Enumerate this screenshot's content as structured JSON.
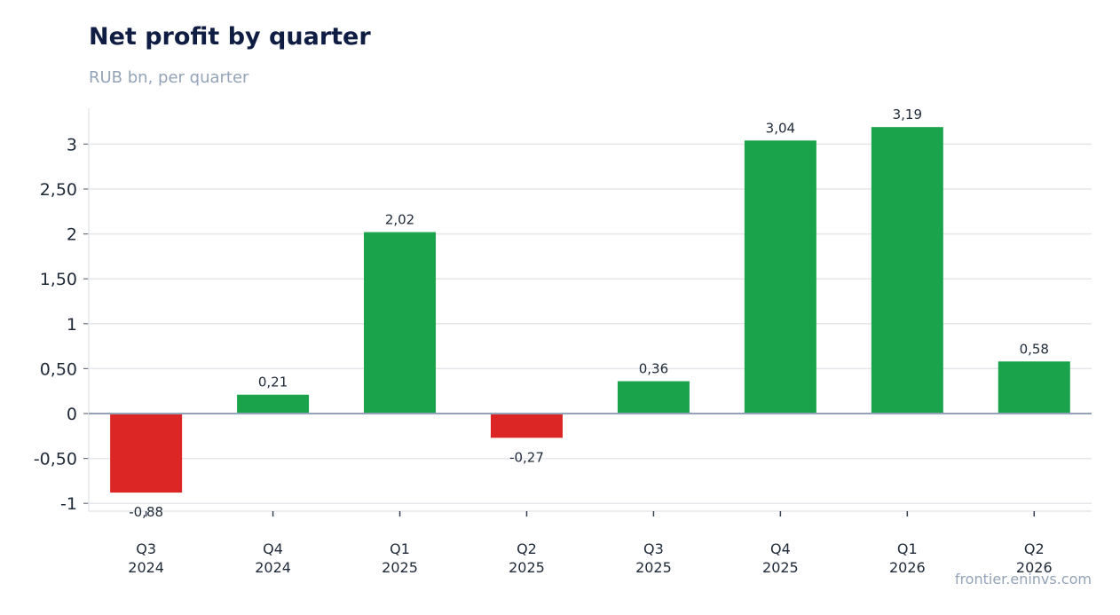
{
  "header": {
    "title": "Net profit by quarter",
    "subtitle": "RUB bn, per quarter"
  },
  "footer": {
    "source": "frontier.eninvs.com"
  },
  "colors": {
    "positive": "#1aa34a",
    "negative": "#dc2626",
    "grid": "#e5e7eb",
    "zero_line": "#94a3b8"
  },
  "chart_data": {
    "type": "bar",
    "title": "Net profit by quarter",
    "subtitle": "RUB bn, per quarter",
    "categories": [
      [
        "Q3",
        "2024"
      ],
      [
        "Q4",
        "2024"
      ],
      [
        "Q1",
        "2025"
      ],
      [
        "Q2",
        "2025"
      ],
      [
        "Q3",
        "2025"
      ],
      [
        "Q4",
        "2025"
      ],
      [
        "Q1",
        "2026"
      ],
      [
        "Q2",
        "2026"
      ]
    ],
    "values": [
      -0.88,
      0.21,
      2.02,
      -0.27,
      0.36,
      3.04,
      3.19,
      0.58
    ],
    "value_labels": [
      "-0,88",
      "0,21",
      "2,02",
      "-0,27",
      "0,36",
      "3,04",
      "3,19",
      "0,58"
    ],
    "yticks": [
      {
        "value": 3,
        "label": "3"
      },
      {
        "value": 2.5,
        "label": "2,50"
      },
      {
        "value": 2,
        "label": "2"
      },
      {
        "value": 1.5,
        "label": "1,50"
      },
      {
        "value": 1,
        "label": "1"
      },
      {
        "value": 0.5,
        "label": "0,50"
      },
      {
        "value": 0,
        "label": "0"
      },
      {
        "value": -0.5,
        "label": "-0,50"
      },
      {
        "value": -1,
        "label": "-1"
      }
    ],
    "ylim": [
      -1.08,
      3.4
    ],
    "grid": true,
    "legend": "none",
    "xlabel": "",
    "ylabel": ""
  }
}
